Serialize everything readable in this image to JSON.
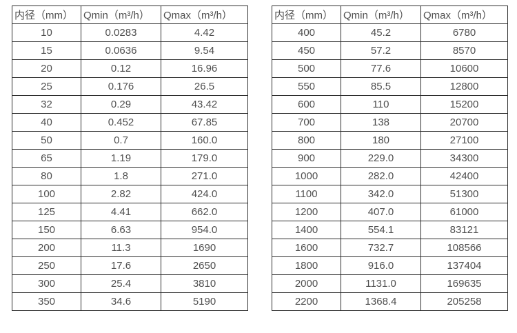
{
  "page": {
    "background": "#ffffff",
    "text_color": "#4f4f4f",
    "border_color": "#2b2b2b"
  },
  "chart_data": [
    {
      "type": "table",
      "title": "",
      "headers": [
        "内径（mm）",
        "Qmin（m³/h）",
        "Qmax（m³/h）"
      ],
      "rows": [
        [
          "10",
          "0.0283",
          "4.42"
        ],
        [
          "15",
          "0.0636",
          "9.54"
        ],
        [
          "20",
          "0.12",
          "16.96"
        ],
        [
          "25",
          "0.176",
          "26.5"
        ],
        [
          "32",
          "0.29",
          "43.42"
        ],
        [
          "40",
          "0.452",
          "67.85"
        ],
        [
          "50",
          "0.7",
          "160.0"
        ],
        [
          "65",
          "1.19",
          "179.0"
        ],
        [
          "80",
          "1.8",
          "271.0"
        ],
        [
          "100",
          "2.82",
          "424.0"
        ],
        [
          "125",
          "4.41",
          "662.0"
        ],
        [
          "150",
          "6.63",
          "954.0"
        ],
        [
          "200",
          "11.3",
          "1690"
        ],
        [
          "250",
          "17.6",
          "2650"
        ],
        [
          "300",
          "25.4",
          "3810"
        ],
        [
          "350",
          "34.6",
          "5190"
        ]
      ]
    },
    {
      "type": "table",
      "title": "",
      "headers": [
        "内径（mm）",
        "Qmin（m³/h）",
        "Qmax（m³/h）"
      ],
      "rows": [
        [
          "400",
          "45.2",
          "6780"
        ],
        [
          "450",
          "57.2",
          "8570"
        ],
        [
          "500",
          "77.6",
          "10600"
        ],
        [
          "550",
          "85.5",
          "12800"
        ],
        [
          "600",
          "110",
          "15200"
        ],
        [
          "700",
          "138",
          "20700"
        ],
        [
          "800",
          "180",
          "27100"
        ],
        [
          "900",
          "229.0",
          "34300"
        ],
        [
          "1000",
          "282.0",
          "42400"
        ],
        [
          "1100",
          "342.0",
          "51300"
        ],
        [
          "1200",
          "407.0",
          "61000"
        ],
        [
          "1400",
          "554.1",
          "83121"
        ],
        [
          "1600",
          "732.7",
          "108566"
        ],
        [
          "1800",
          "916.0",
          "137404"
        ],
        [
          "2000",
          "1131.0",
          "169635"
        ],
        [
          "2200",
          "1368.4",
          "205258"
        ]
      ]
    }
  ]
}
